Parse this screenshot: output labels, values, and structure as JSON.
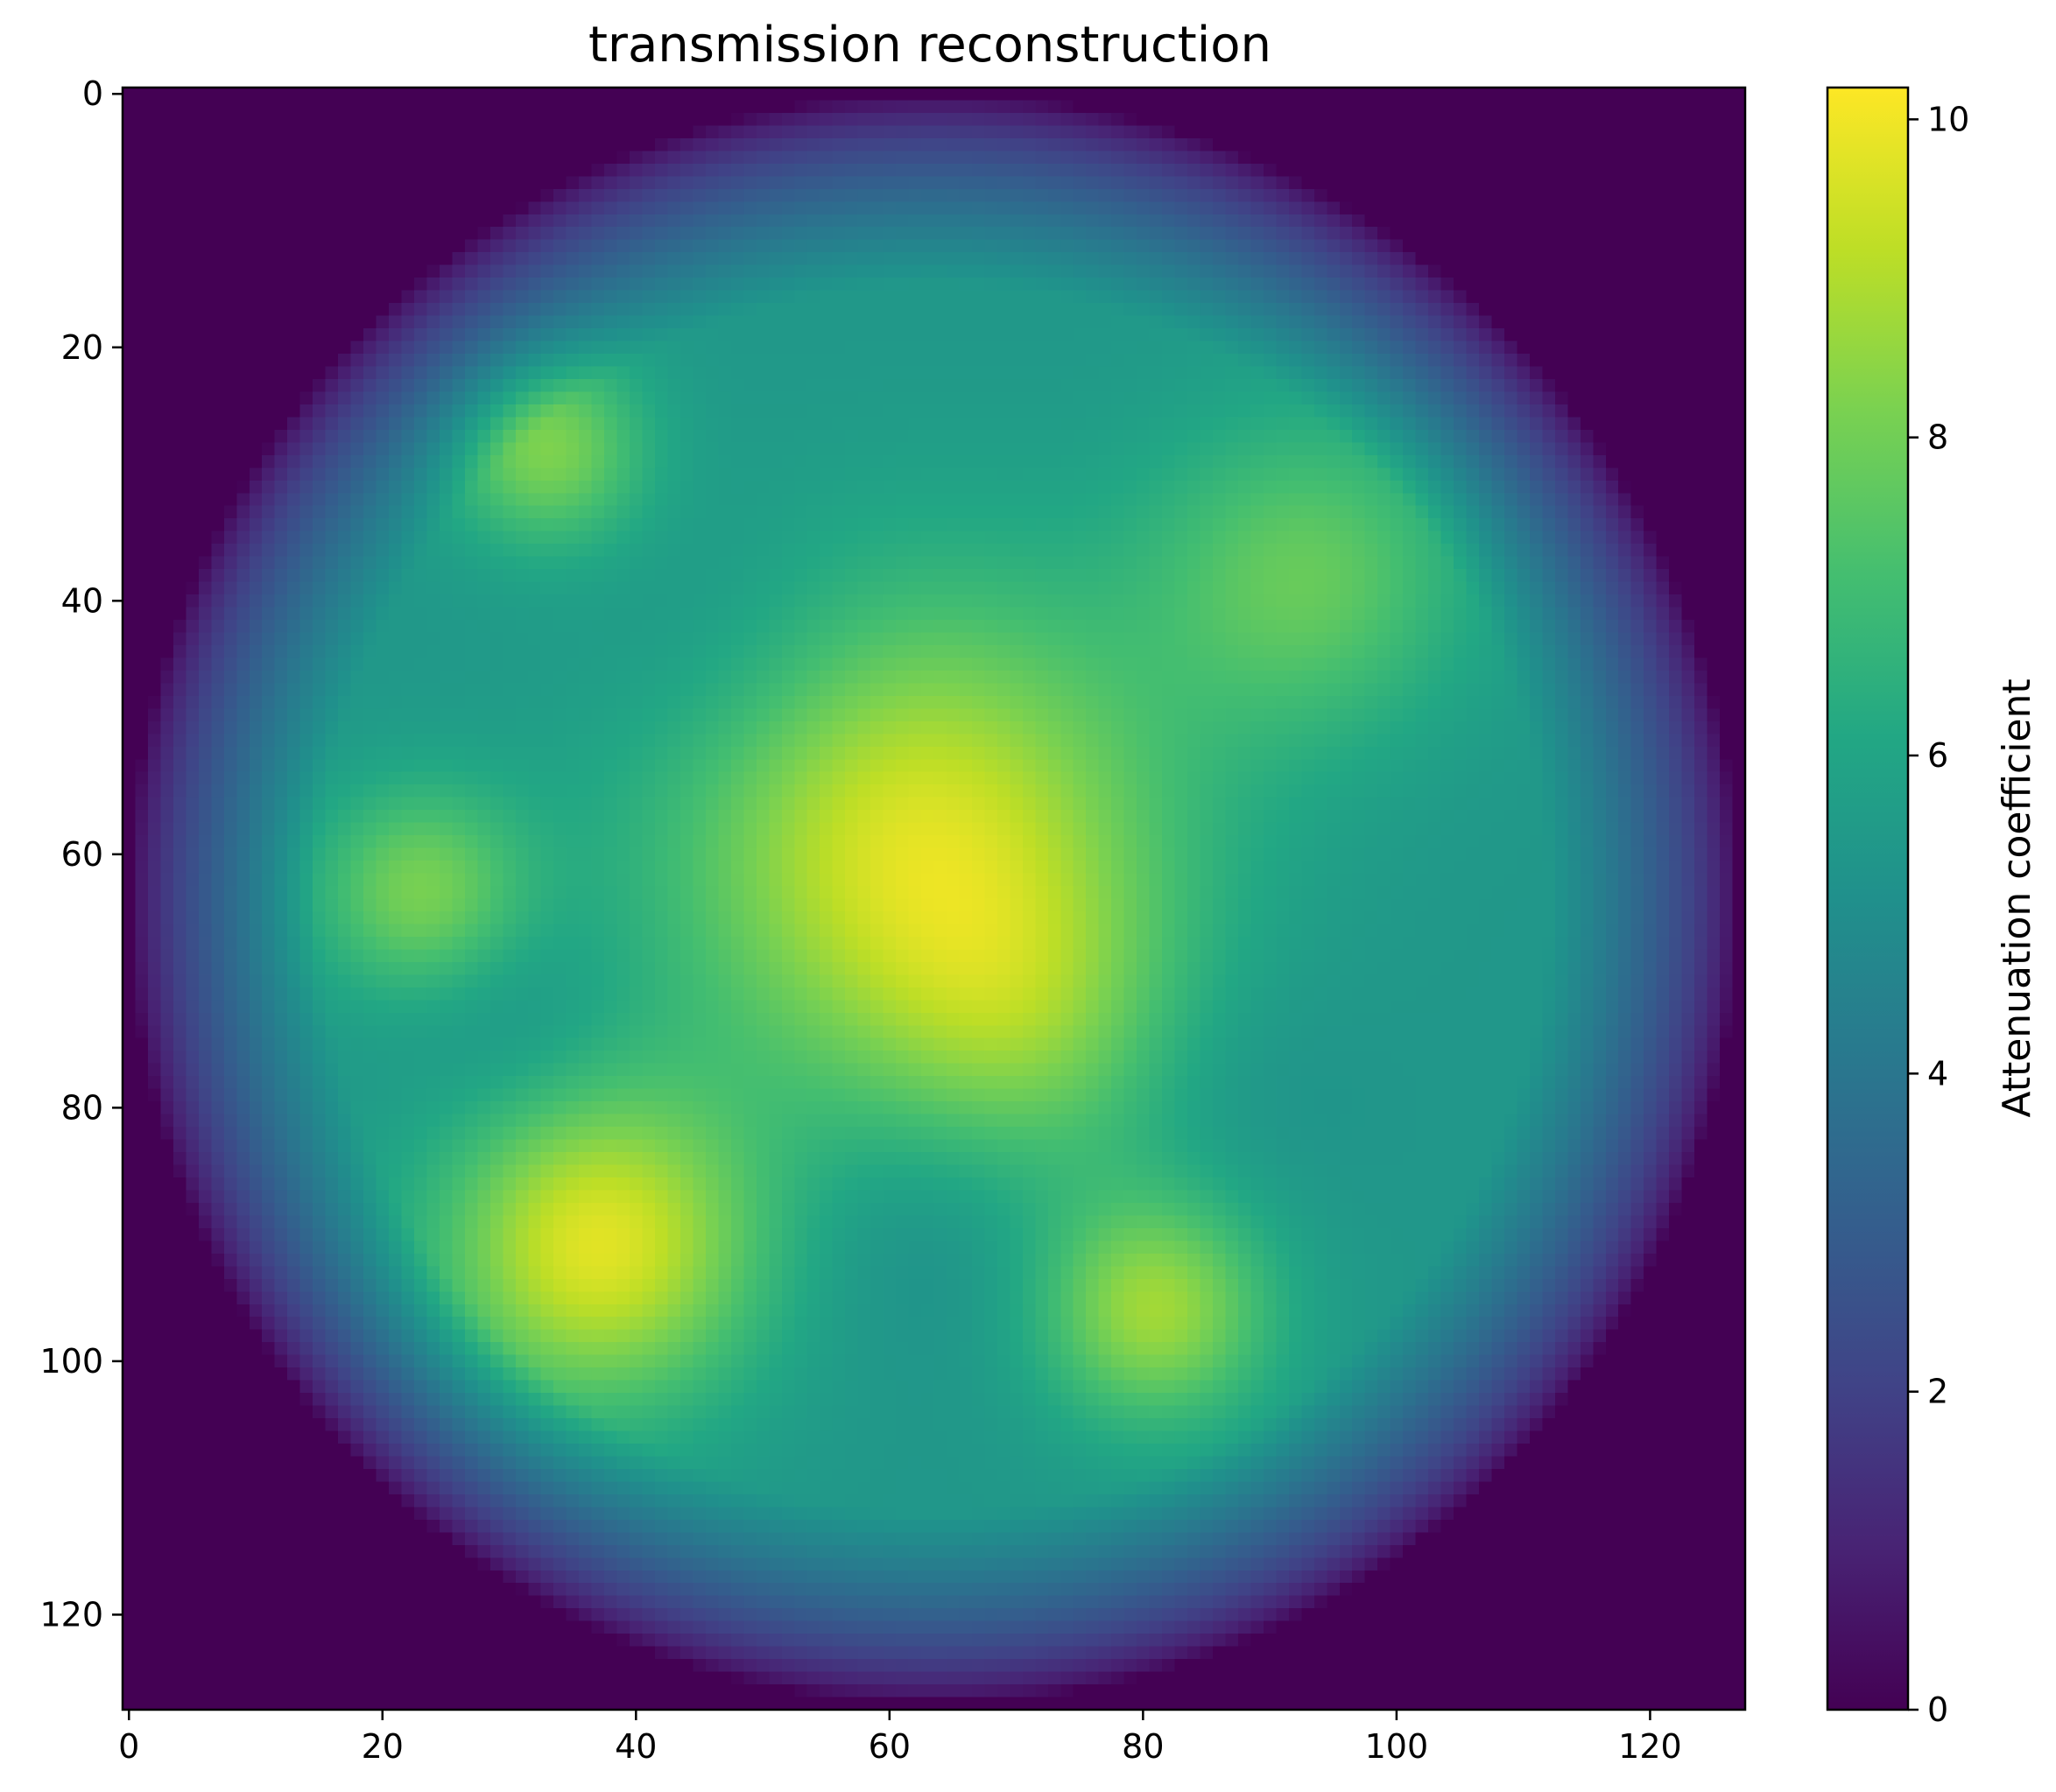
{
  "chart_data": {
    "type": "heatmap",
    "title": "transmission reconstruction",
    "xlabel": "",
    "ylabel": "",
    "grid_size": 128,
    "xlim": [
      -0.5,
      127.5
    ],
    "ylim": [
      127.5,
      -0.5
    ],
    "y_axis_inverted": true,
    "grid": false,
    "x_ticks": [
      0,
      20,
      40,
      60,
      80,
      100,
      120
    ],
    "y_ticks": [
      0,
      20,
      40,
      60,
      80,
      100,
      120
    ],
    "colormap": "viridis",
    "value_range": [
      0,
      10.2
    ],
    "support_disk": {
      "center": [
        63.5,
        63.5
      ],
      "radius": 63.5
    },
    "colorbar": {
      "label": "Attenuation coefficient",
      "ticks": [
        0,
        2,
        4,
        6,
        8,
        10
      ],
      "placement": "right"
    },
    "background_level": 5.4,
    "dark_patches": [
      {
        "cx": 48,
        "cy": 45,
        "radius": 8,
        "amplitude": -0.6
      },
      {
        "cx": 30,
        "cy": 73,
        "radius": 6,
        "amplitude": -0.6
      },
      {
        "cx": 63,
        "cy": 89,
        "radius": 7,
        "amplitude": -0.6
      },
      {
        "cx": 87,
        "cy": 78,
        "radius": 7,
        "amplitude": -0.4
      }
    ],
    "blobs": [
      {
        "cx": 62,
        "cy": 59,
        "radius": 14,
        "amplitude": 4.2
      },
      {
        "cx": 71,
        "cy": 74,
        "radius": 9,
        "amplitude": 1.6
      },
      {
        "cx": 33,
        "cy": 28,
        "radius": 5.5,
        "amplitude": 2.8
      },
      {
        "cx": 93,
        "cy": 38,
        "radius": 9,
        "amplitude": 2.3
      },
      {
        "cx": 23,
        "cy": 63,
        "radius": 6,
        "amplitude": 2.7
      },
      {
        "cx": 37,
        "cy": 91,
        "radius": 9,
        "amplitude": 4.3
      },
      {
        "cx": 81,
        "cy": 96,
        "radius": 6.5,
        "amplitude": 3.3
      }
    ]
  }
}
